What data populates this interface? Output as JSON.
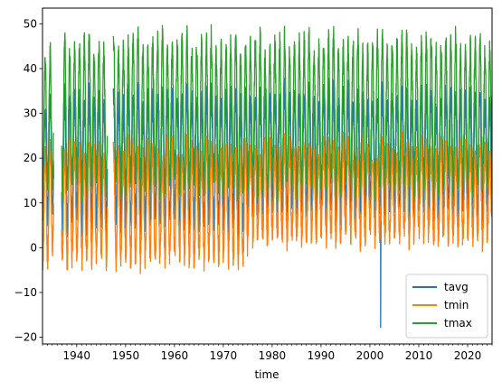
{
  "chart_data": {
    "type": "line",
    "title": "",
    "xlabel": "time",
    "ylabel": "",
    "xlim": [
      1933,
      2025
    ],
    "ylim": [
      -21.5,
      53.5
    ],
    "x_major_ticks": [
      1940,
      1950,
      1960,
      1970,
      1980,
      1990,
      2000,
      2010,
      2020
    ],
    "x_tick_labels": [
      "1940",
      "1950",
      "1960",
      "1970",
      "1980",
      "1990",
      "2000",
      "2010",
      "2020"
    ],
    "y_ticks": [
      -20,
      -10,
      0,
      10,
      20,
      30,
      40,
      50
    ],
    "y_tick_labels": [
      "−20",
      "−10",
      "0",
      "10",
      "20",
      "30",
      "40",
      "50"
    ],
    "grid": false,
    "legend_position": "lower-right",
    "data_gaps_years": [
      [
        1935.3,
        1936.9
      ],
      [
        1946.3,
        1947.5
      ]
    ],
    "series": [
      {
        "name": "tavg",
        "color": "#1f77b4",
        "summary": "daily average, mostly 18–35, with a single drop to about −17.8 in 2002",
        "outlier": {
          "x": 2002.2,
          "y": -17.8
        }
      },
      {
        "name": "tmin",
        "color": "#ff7f0e",
        "summary": "daily minimum, seasonal cycle roughly 0 to 25, lows near −5 to −8 before 1975"
      },
      {
        "name": "tmax",
        "color": "#2ca02c",
        "summary": "daily maximum, seasonal cycle roughly 12 to 46, peak near 49.5 around 1990"
      }
    ]
  }
}
